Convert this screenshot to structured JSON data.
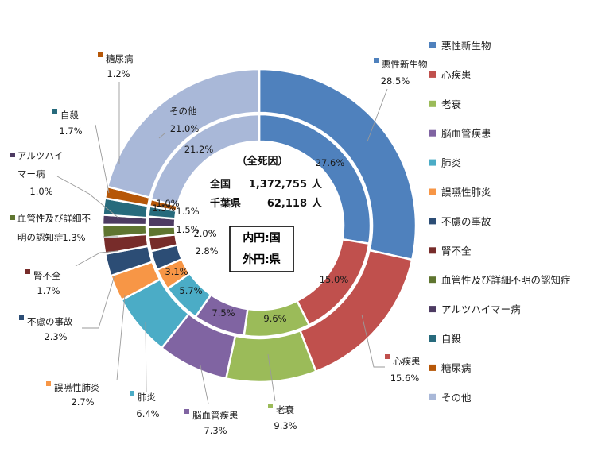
{
  "chart_data": {
    "type": "pie",
    "subtype": "double-donut",
    "categories": [
      "悪性新生物",
      "心疾患",
      "老衰",
      "脳血管疾患",
      "肺炎",
      "誤嚥性肺炎",
      "不慮の事故",
      "腎不全",
      "血管性及び詳細不明の認知症",
      "アルツハイマー病",
      "自殺",
      "糖尿病",
      "その他"
    ],
    "colors": [
      "#4f81bd",
      "#c0504d",
      "#9bbb59",
      "#8064a2",
      "#4bacc6",
      "#f79646",
      "#2c4d75",
      "#772c2a",
      "#5f7530",
      "#4d3b62",
      "#276a7c",
      "#b65708",
      "#a9b8d8"
    ],
    "series": [
      {
        "ring": "inner",
        "values": [
          27.6,
          15.0,
          9.6,
          7.5,
          5.7,
          3.1,
          2.8,
          2.0,
          1.5,
          1.5,
          1.5,
          1.0,
          21.2
        ],
        "labels": [
          "27.6%",
          "15.0%",
          "9.6%",
          "7.5%",
          "5.7%",
          "3.1%",
          "2.8%",
          "2.0%",
          "1.5%",
          "1.5%",
          "1.5%",
          "1.0%",
          "21.2%"
        ]
      },
      {
        "ring": "outer",
        "values": [
          28.5,
          15.6,
          9.3,
          7.3,
          6.4,
          2.7,
          2.3,
          1.7,
          1.3,
          1.0,
          1.7,
          1.2,
          21.0
        ],
        "labels": [
          "28.5%",
          "15.6%",
          "9.3%",
          "7.3%",
          "6.4%",
          "2.7%",
          "2.3%",
          "1.7%",
          "1.3%",
          "1.0%",
          "1.7%",
          "1.2%",
          "21.0%"
        ]
      }
    ],
    "outer_label_names": [
      "悪性新生物",
      "心疾患",
      "老衰",
      "脳血管疾患",
      "肺炎",
      "誤嚥性肺炎",
      "不慮の事故",
      "腎不全",
      "血管性及び詳細不明の認知症",
      "アルツハイマー病",
      "自殺",
      "糖尿病",
      "その他"
    ],
    "legend_entries": [
      "悪性新生物",
      "心疾患",
      "老衰",
      "脳血管疾患",
      "肺炎",
      "誤嚥性肺炎",
      "不慮の事故",
      "腎不全",
      "血管性及び詳細不明の認知症",
      "アルツハイマー病",
      "自殺",
      "糖尿病",
      "その他"
    ],
    "legend_position": "right",
    "center": {
      "title": "（全死因）",
      "national_label": "全国",
      "national_value": "1,372,755",
      "national_unit": "人",
      "pref_label": "千葉県",
      "pref_value": "62,118",
      "pref_unit": "人"
    },
    "note_box": {
      "line1": "内円:国",
      "line2": "外円:県"
    }
  }
}
